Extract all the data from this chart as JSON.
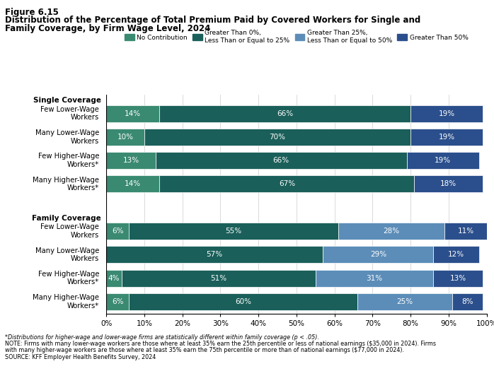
{
  "title_line1": "Figure 6.15",
  "title_line2": "Distribution of the Percentage of Total Premium Paid by Covered Workers for Single and",
  "title_line3": "Family Coverage, by Firm Wage Level, 2024",
  "legend_labels": [
    "No Contribution",
    "Greater Than 0%,\nLess Than or Equal to 25%",
    "Greater Than 25%,\nLess Than or Equal to 50%",
    "Greater Than 50%"
  ],
  "colors": [
    "#3a8a72",
    "#1a5f5a",
    "#5b8db8",
    "#2b4f8c"
  ],
  "categories": [
    "Few Lower-Wage\nWorkers",
    "Many Lower-Wage\nWorkers",
    "Few Higher-Wage\nWorkers*",
    "Many Higher-Wage\nWorkers*",
    "Few Lower-Wage\nWorkers",
    "Many Lower-Wage\nWorkers",
    "Few Higher-Wage\nWorkers*",
    "Many Higher-Wage\nWorkers*"
  ],
  "data": [
    [
      14,
      66,
      0,
      19
    ],
    [
      10,
      70,
      0,
      19
    ],
    [
      13,
      66,
      0,
      19
    ],
    [
      14,
      67,
      0,
      18
    ],
    [
      6,
      55,
      28,
      11
    ],
    [
      0,
      57,
      29,
      12
    ],
    [
      4,
      51,
      31,
      13
    ],
    [
      6,
      60,
      25,
      8
    ]
  ],
  "bar_labels": [
    [
      "14%",
      "66%",
      "",
      "19%"
    ],
    [
      "10%",
      "70%",
      "",
      "19%"
    ],
    [
      "13%",
      "66%",
      "",
      "19%"
    ],
    [
      "14%",
      "67%",
      "",
      "18%"
    ],
    [
      "6%",
      "55%",
      "28%",
      "11%"
    ],
    [
      "",
      "57%",
      "29%",
      "12%"
    ],
    [
      "4%",
      "51%",
      "31%",
      "13%"
    ],
    [
      "6%",
      "60%",
      "25%",
      "8%"
    ]
  ],
  "footnote1": "*Distributions for higher-wage and lower-wage firms are statistically different within family coverage (p < .05).",
  "footnote2": "NOTE: Firms with many lower-wage workers are those where at least 35% earn the 25th percentile or less of national earnings ($35,000 in 2024). Firms",
  "footnote3": "with many higher-wage workers are those where at least 35% earn the 75th percentile or more than of national earnings ($77,000 in 2024).",
  "footnote4": "SOURCE: KFF Employer Health Benefits Survey, 2024",
  "xticks": [
    0,
    10,
    20,
    30,
    40,
    50,
    60,
    70,
    80,
    90,
    100
  ],
  "xtick_labels": [
    "0%",
    "10%",
    "20%",
    "30%",
    "40%",
    "50%",
    "60%",
    "70%",
    "80%",
    "90%",
    "100%"
  ]
}
